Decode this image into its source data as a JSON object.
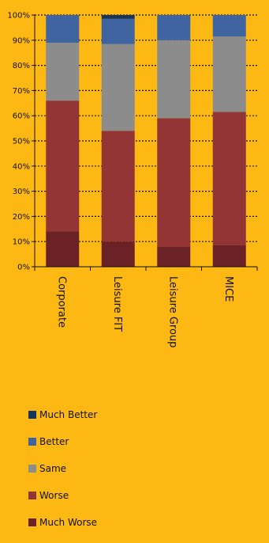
{
  "chart_data": {
    "type": "bar",
    "stacked": true,
    "normalized": true,
    "categories": [
      "Corporate",
      "Leisure FIT",
      "Leisure Group",
      "MICE"
    ],
    "ylim": [
      0,
      100
    ],
    "yticks": [
      "0%",
      "10%",
      "20%",
      "30%",
      "40%",
      "50%",
      "60%",
      "70%",
      "80%",
      "90%",
      "100%"
    ],
    "grid": true,
    "legend_position": "bottom-left",
    "series": [
      {
        "name": "Much Worse",
        "color": "#6B2226",
        "values": [
          14,
          10,
          8,
          8.5
        ]
      },
      {
        "name": "Worse",
        "color": "#943535",
        "values": [
          52,
          44,
          51,
          53
        ]
      },
      {
        "name": "Same",
        "color": "#8C8C8C",
        "values": [
          23,
          34.5,
          31,
          30
        ]
      },
      {
        "name": "Better",
        "color": "#3F64A0",
        "values": [
          11,
          10,
          10,
          8.5
        ]
      },
      {
        "name": "Much Better",
        "color": "#17365D",
        "values": [
          0,
          1.5,
          0,
          0
        ]
      }
    ]
  }
}
